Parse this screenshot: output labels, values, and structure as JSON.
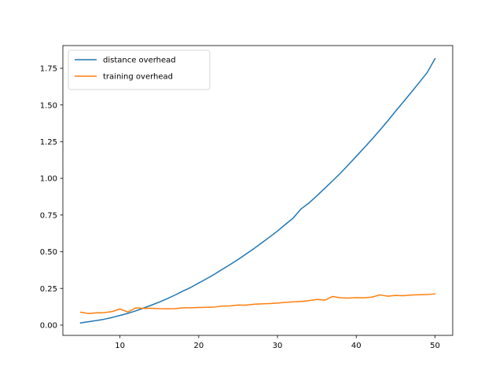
{
  "chart_data": {
    "type": "line",
    "title": "",
    "xlabel": "",
    "ylabel": "",
    "xlim": [
      2.75,
      52.25
    ],
    "ylim": [
      -0.07,
      1.905
    ],
    "xticks": [
      10,
      20,
      30,
      40,
      50
    ],
    "yticks": [
      0.0,
      0.25,
      0.5,
      0.75,
      1.0,
      1.25,
      1.5,
      1.75
    ],
    "ytick_labels": [
      "0.00",
      "0.25",
      "0.50",
      "0.75",
      "1.00",
      "1.25",
      "1.50",
      "1.75"
    ],
    "xtick_labels": [
      "10",
      "20",
      "30",
      "40",
      "50"
    ],
    "grid": false,
    "legend_position": "top-left",
    "x": [
      5,
      6,
      7,
      8,
      9,
      10,
      11,
      12,
      13,
      14,
      15,
      16,
      17,
      18,
      19,
      20,
      21,
      22,
      23,
      24,
      25,
      26,
      27,
      28,
      29,
      30,
      31,
      32,
      33,
      34,
      35,
      36,
      37,
      38,
      39,
      40,
      41,
      42,
      43,
      44,
      45,
      46,
      47,
      48,
      49,
      50
    ],
    "series": [
      {
        "name": "distance overhead",
        "color": "#1f77b4",
        "values": [
          0.015,
          0.023,
          0.031,
          0.04,
          0.052,
          0.066,
          0.08,
          0.097,
          0.116,
          0.136,
          0.157,
          0.18,
          0.205,
          0.232,
          0.257,
          0.287,
          0.316,
          0.347,
          0.38,
          0.413,
          0.447,
          0.484,
          0.521,
          0.56,
          0.6,
          0.641,
          0.686,
          0.73,
          0.792,
          0.832,
          0.881,
          0.932,
          0.983,
          1.036,
          1.092,
          1.15,
          1.208,
          1.267,
          1.328,
          1.391,
          1.458,
          1.522,
          1.587,
          1.653,
          1.72,
          1.815
        ]
      },
      {
        "name": "training overhead",
        "color": "#ff7f0e",
        "values": [
          0.088,
          0.079,
          0.084,
          0.085,
          0.092,
          0.11,
          0.089,
          0.117,
          0.114,
          0.115,
          0.112,
          0.111,
          0.112,
          0.118,
          0.118,
          0.12,
          0.121,
          0.123,
          0.13,
          0.131,
          0.137,
          0.136,
          0.142,
          0.145,
          0.147,
          0.15,
          0.155,
          0.159,
          0.161,
          0.167,
          0.175,
          0.17,
          0.195,
          0.186,
          0.184,
          0.187,
          0.186,
          0.191,
          0.206,
          0.197,
          0.202,
          0.2,
          0.205,
          0.207,
          0.208,
          0.213
        ]
      }
    ]
  }
}
